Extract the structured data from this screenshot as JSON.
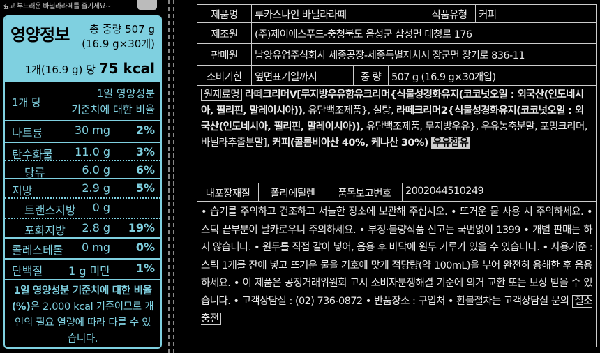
{
  "tagline": "깊고 부드러운 바닐라라떼를 즐기세요~",
  "nutrition": {
    "title": "영양정보",
    "total_line1": "총 중량 507 g",
    "total_line2": "(16.9 g×30개)",
    "per_serving": "1개(16.9 g) 당",
    "kcal": "75 kcal",
    "header_left": "1개 당",
    "header_right1": "1일 영양성분",
    "header_right2": "기준치에 대한 비율",
    "rows": [
      {
        "name": "나트륨",
        "value": "30 mg",
        "pct": "2%"
      },
      {
        "name": "탄수화물",
        "value": "11.0 g",
        "pct": "3%"
      },
      {
        "name": "당류",
        "value": "6.0 g",
        "pct": "6%"
      },
      {
        "name": "지방",
        "value": "2.9 g",
        "pct": "5%"
      },
      {
        "name": "트랜스지방",
        "value": "0 g",
        "pct": ""
      },
      {
        "name": "포화지방",
        "value": "2.8 g",
        "pct": "19%"
      },
      {
        "name": "콜레스테롤",
        "value": "0 mg",
        "pct": "0%"
      },
      {
        "name": "단백질",
        "value": "1 g 미만",
        "pct": "1%"
      }
    ],
    "footnote_bold": "1일 영양성분 기준치에 대한 비율(%)",
    "footnote_rest": "은 2,000 kcal 기준이므로 개인의 필요 열량에 따라 다를 수 있습니다."
  },
  "info": {
    "product_label": "제품명",
    "product": "루카스나인 바닐라라떼",
    "type_label": "식품유형",
    "type": "커피",
    "maker_label": "제조원",
    "maker": "(주)제이에스푸드-충청북도 음성군 삼성면 대청로 176",
    "seller_label": "판매원",
    "seller": "남양유업주식회사 세종공장-세종특별자치시 장군면 장기로 836-11",
    "expiry_label": "소비기한",
    "expiry": "옆면표기일까지",
    "weight_label": "중 량",
    "weight": "507 g (16.9 g×30개입)",
    "ingredients_label": "원재료명",
    "ingredients_a": "라떼크리머V[무지방우유함유크리머{식물성경화유지(코코넛오일 : 외국산(인도네시아, 필리핀, 말레이시아))",
    "ingredients_b": ", 유단백조제품}, 설탕, ",
    "ingredients_c": "라떼크리머2{식물성경화유지(코코넛오일 : 외국산(인도네시아, 필리핀, 말레이시아)),",
    "ingredients_d": " 유단백조제품, 무지방우유}, 우유농축분말, 포밍크리머, 바닐라추출분말], ",
    "ingredients_e": "커피(콜롬비아산 40%, 케냐산 30%)",
    "allergen": "우유함유",
    "packaging_label": "내포장재질",
    "packaging": "폴리에틸렌",
    "report_label": "품목보고번호",
    "report": "2002044510249",
    "notes": "• 습기를 주의하고 건조하고 서늘한 장소에 보관해 주십시오. • 뜨거운 물 사용 시 주의하세요. • 스틱 끝부분이 날카로우니 주의하세요. • 부정·불량식품 신고는 국번없이 1399 • 개별 판매는 하지 않습니다. • 원두를 직접 갈아 넣어, 음용 후 바닥에 원두 가루가 있을 수 있습니다. • 사용기준 : 스틱 1개를 잔에 넣고 뜨거운 물을 기호에 맞게 적당량(약 100mL)을 부어 완전히 용해한 후 음용하세요. • 이 제품은 공정거래위원회 고시 소비자분쟁해결 기준에 의거 교환 또는 보상 받을 수 있습니다. • 고객상담실 : (02) 736-0872 • 반품장소 : 구입처 • 환불절차는 고객상담실 문의",
    "nitrogen": "질소충전"
  },
  "colors": {
    "accent": "#7fd0e0",
    "background": "#000000",
    "text": "#e8e8e8"
  }
}
